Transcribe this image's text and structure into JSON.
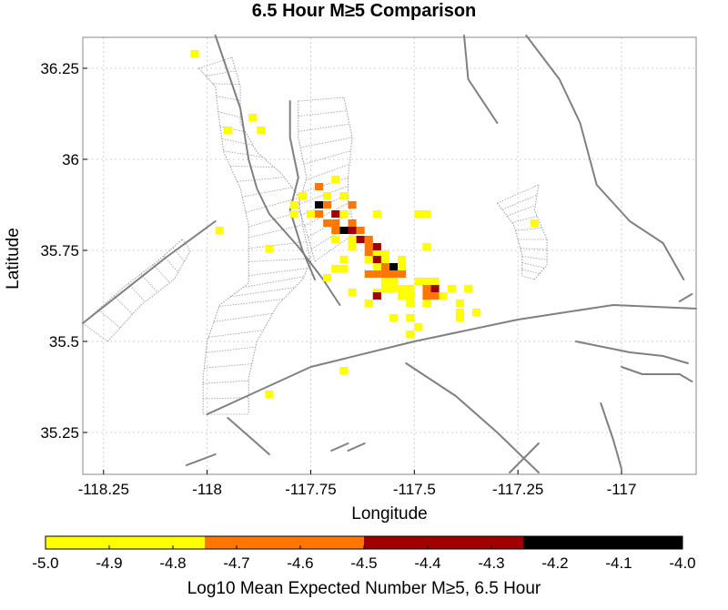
{
  "title": "6.5 Hour M≥5 Comparison",
  "map": {
    "xlabel": "Longitude",
    "ylabel": "Latitude",
    "xlim": [
      -118.3,
      -116.82
    ],
    "ylim": [
      35.135,
      36.335
    ],
    "xticks": [
      {
        "value": -118.25,
        "label": "-118.25"
      },
      {
        "value": -118.0,
        "label": "-118"
      },
      {
        "value": -117.75,
        "label": "-117.75"
      },
      {
        "value": -117.5,
        "label": "-117.5"
      },
      {
        "value": -117.25,
        "label": "-117.25"
      },
      {
        "value": -117.0,
        "label": "-117"
      }
    ],
    "yticks": [
      {
        "value": 35.25,
        "label": "35.25"
      },
      {
        "value": 35.5,
        "label": "35.5"
      },
      {
        "value": 35.75,
        "label": "35.75"
      },
      {
        "value": 36.0,
        "label": "36"
      },
      {
        "value": 36.25,
        "label": "36.25"
      }
    ],
    "grid": true,
    "cell_size_deg": 0.02,
    "levels": [
      {
        "min": -5.0,
        "max": -4.75,
        "color": "#ffff00"
      },
      {
        "min": -4.75,
        "max": -4.5,
        "color": "#ff7700"
      },
      {
        "min": -4.5,
        "max": -4.25,
        "color": "#a00000"
      },
      {
        "min": -4.25,
        "max": -4.0,
        "color": "#000000"
      }
    ],
    "fault_color": "#808080",
    "cells": [
      [
        -118.03,
        36.29,
        0
      ],
      [
        -117.89,
        36.115,
        0
      ],
      [
        -117.95,
        36.08,
        0
      ],
      [
        -117.87,
        36.08,
        0
      ],
      [
        -117.69,
        35.945,
        0
      ],
      [
        -117.73,
        35.925,
        1
      ],
      [
        -117.77,
        35.9,
        0
      ],
      [
        -117.71,
        35.9,
        0
      ],
      [
        -117.67,
        35.9,
        0
      ],
      [
        -117.79,
        35.875,
        0
      ],
      [
        -117.73,
        35.875,
        3
      ],
      [
        -117.71,
        35.875,
        1
      ],
      [
        -117.65,
        35.875,
        1
      ],
      [
        -117.79,
        35.85,
        0
      ],
      [
        -117.75,
        35.85,
        0
      ],
      [
        -117.73,
        35.85,
        1
      ],
      [
        -117.69,
        35.85,
        2
      ],
      [
        -117.67,
        35.85,
        0
      ],
      [
        -117.59,
        35.85,
        0
      ],
      [
        -117.49,
        35.85,
        0
      ],
      [
        -117.47,
        35.85,
        0
      ],
      [
        -117.71,
        35.825,
        1
      ],
      [
        -117.69,
        35.825,
        1
      ],
      [
        -117.65,
        35.825,
        1
      ],
      [
        -117.21,
        35.825,
        0
      ],
      [
        -117.97,
        35.805,
        0
      ],
      [
        -117.69,
        35.805,
        1
      ],
      [
        -117.67,
        35.805,
        3
      ],
      [
        -117.65,
        35.805,
        2
      ],
      [
        -117.63,
        35.805,
        1
      ],
      [
        -117.69,
        35.78,
        0
      ],
      [
        -117.65,
        35.78,
        0
      ],
      [
        -117.63,
        35.78,
        2
      ],
      [
        -117.61,
        35.78,
        1
      ],
      [
        -117.65,
        35.76,
        0
      ],
      [
        -117.61,
        35.76,
        1
      ],
      [
        -117.59,
        35.76,
        2
      ],
      [
        -117.47,
        35.76,
        0
      ],
      [
        -117.85,
        35.755,
        0
      ],
      [
        -117.61,
        35.74,
        1
      ],
      [
        -117.59,
        35.74,
        0
      ],
      [
        -117.57,
        35.74,
        0
      ],
      [
        -117.67,
        35.725,
        0
      ],
      [
        -117.61,
        35.725,
        0
      ],
      [
        -117.59,
        35.725,
        2
      ],
      [
        -117.57,
        35.725,
        0
      ],
      [
        -117.53,
        35.725,
        0
      ],
      [
        -117.59,
        35.705,
        0
      ],
      [
        -117.57,
        35.705,
        1
      ],
      [
        -117.55,
        35.705,
        3
      ],
      [
        -117.53,
        35.705,
        0
      ],
      [
        -117.69,
        35.7,
        0
      ],
      [
        -117.67,
        35.7,
        0
      ],
      [
        -117.61,
        35.685,
        1
      ],
      [
        -117.59,
        35.685,
        1
      ],
      [
        -117.57,
        35.685,
        1
      ],
      [
        -117.55,
        35.685,
        1
      ],
      [
        -117.53,
        35.685,
        1
      ],
      [
        -117.71,
        35.675,
        0
      ],
      [
        -117.57,
        35.665,
        0
      ],
      [
        -117.55,
        35.665,
        0
      ],
      [
        -117.49,
        35.665,
        0
      ],
      [
        -117.47,
        35.665,
        0
      ],
      [
        -117.45,
        35.665,
        0
      ],
      [
        -117.57,
        35.645,
        0
      ],
      [
        -117.55,
        35.645,
        0
      ],
      [
        -117.53,
        35.645,
        0
      ],
      [
        -117.51,
        35.645,
        0
      ],
      [
        -117.47,
        35.645,
        1
      ],
      [
        -117.45,
        35.645,
        2
      ],
      [
        -117.41,
        35.645,
        0
      ],
      [
        -117.37,
        35.645,
        0
      ],
      [
        -117.65,
        35.635,
        0
      ],
      [
        -117.59,
        35.635,
        0
      ],
      [
        -117.59,
        35.625,
        2
      ],
      [
        -117.53,
        35.625,
        0
      ],
      [
        -117.51,
        35.625,
        0
      ],
      [
        -117.47,
        35.625,
        1
      ],
      [
        -117.45,
        35.625,
        1
      ],
      [
        -117.43,
        35.625,
        0
      ],
      [
        -117.61,
        35.605,
        0
      ],
      [
        -117.51,
        35.605,
        0
      ],
      [
        -117.47,
        35.605,
        0
      ],
      [
        -117.39,
        35.605,
        0
      ],
      [
        -117.39,
        35.58,
        0
      ],
      [
        -117.35,
        35.58,
        0
      ],
      [
        -117.55,
        35.565,
        0
      ],
      [
        -117.51,
        35.565,
        0
      ],
      [
        -117.39,
        35.565,
        0
      ],
      [
        -117.49,
        35.54,
        0
      ],
      [
        -117.51,
        35.52,
        0
      ],
      [
        -117.67,
        35.42,
        0
      ],
      [
        -117.85,
        35.355,
        0
      ]
    ],
    "faults": [
      [
        [
          -117.98,
          36.34
        ],
        [
          -117.95,
          36.24
        ],
        [
          -117.92,
          36.14
        ],
        [
          -117.9,
          36.0
        ],
        [
          -117.88,
          35.92
        ],
        [
          -117.85,
          35.85
        ],
        [
          -117.78,
          35.76
        ],
        [
          -117.72,
          35.67
        ],
        [
          -117.68,
          35.6
        ]
      ],
      [
        [
          -117.8,
          36.16
        ],
        [
          -117.8,
          36.06
        ],
        [
          -117.78,
          35.95
        ],
        [
          -117.8,
          35.86
        ],
        [
          -117.77,
          35.75
        ],
        [
          -117.74,
          35.67
        ]
      ],
      [
        [
          -118.0,
          35.3
        ],
        [
          -117.75,
          35.43
        ],
        [
          -117.5,
          35.5
        ],
        [
          -117.25,
          35.56
        ],
        [
          -117.02,
          35.6
        ],
        [
          -116.82,
          35.59
        ]
      ],
      [
        [
          -118.3,
          35.55
        ],
        [
          -118.1,
          35.73
        ],
        [
          -117.98,
          35.83
        ]
      ],
      [
        [
          -117.38,
          36.34
        ],
        [
          -117.37,
          36.22
        ],
        [
          -117.3,
          36.1
        ]
      ],
      [
        [
          -117.23,
          36.34
        ],
        [
          -117.15,
          36.22
        ],
        [
          -117.1,
          36.1
        ],
        [
          -117.06,
          35.93
        ],
        [
          -116.98,
          35.83
        ],
        [
          -116.9,
          35.77
        ],
        [
          -116.85,
          35.67
        ]
      ],
      [
        [
          -117.52,
          35.44
        ],
        [
          -117.4,
          35.35
        ],
        [
          -117.3,
          35.25
        ],
        [
          -117.2,
          35.14
        ]
      ],
      [
        [
          -117.11,
          35.5
        ],
        [
          -116.98,
          35.47
        ],
        [
          -116.9,
          35.46
        ],
        [
          -116.84,
          35.44
        ]
      ],
      [
        [
          -117.05,
          35.33
        ],
        [
          -117.02,
          35.23
        ],
        [
          -117.0,
          35.15
        ]
      ],
      [
        [
          -117.0,
          35.43
        ],
        [
          -116.95,
          35.41
        ],
        [
          -116.86,
          35.41
        ],
        [
          -116.83,
          35.39
        ]
      ],
      [
        [
          -116.86,
          35.61
        ],
        [
          -116.83,
          35.63
        ]
      ],
      [
        [
          -117.95,
          35.29
        ],
        [
          -117.9,
          35.24
        ],
        [
          -117.85,
          35.19
        ]
      ],
      [
        [
          -118.05,
          35.16
        ],
        [
          -117.98,
          35.19
        ]
      ],
      [
        [
          -117.7,
          35.2
        ],
        [
          -117.66,
          35.22
        ]
      ],
      [
        [
          -117.27,
          35.14
        ],
        [
          -117.2,
          35.22
        ]
      ],
      [
        [
          -117.66,
          35.2
        ],
        [
          -117.62,
          35.22
        ]
      ]
    ],
    "fault_systems": [
      {
        "left": [
          [
            -118.02,
            36.25
          ],
          [
            -117.98,
            36.2
          ],
          [
            -117.97,
            36.1
          ],
          [
            -117.96,
            36.02
          ],
          [
            -117.92,
            35.92
          ],
          [
            -117.9,
            35.82
          ],
          [
            -117.9,
            35.75
          ],
          [
            -117.9,
            35.66
          ],
          [
            -117.97,
            35.6
          ],
          [
            -118.0,
            35.5
          ],
          [
            -118.01,
            35.4
          ],
          [
            -118.01,
            35.3
          ]
        ],
        "right": [
          [
            -117.94,
            36.28
          ],
          [
            -117.92,
            36.2
          ],
          [
            -117.92,
            36.1
          ],
          [
            -117.88,
            36.02
          ],
          [
            -117.82,
            35.96
          ],
          [
            -117.78,
            35.9
          ],
          [
            -117.77,
            35.82
          ],
          [
            -117.75,
            35.72
          ],
          [
            -117.77,
            35.67
          ],
          [
            -117.83,
            35.6
          ],
          [
            -117.88,
            35.5
          ],
          [
            -117.9,
            35.4
          ],
          [
            -117.9,
            35.3
          ]
        ]
      },
      {
        "left": [
          [
            -117.78,
            36.16
          ],
          [
            -117.78,
            36.06
          ],
          [
            -117.76,
            35.95
          ],
          [
            -117.78,
            35.87
          ],
          [
            -117.76,
            35.8
          ],
          [
            -117.74,
            35.72
          ]
        ],
        "right": [
          [
            -117.67,
            36.17
          ],
          [
            -117.65,
            36.06
          ],
          [
            -117.66,
            35.95
          ],
          [
            -117.66,
            35.88
          ],
          [
            -117.64,
            35.8
          ]
        ]
      },
      {
        "left": [
          [
            -117.3,
            35.88
          ],
          [
            -117.26,
            35.82
          ],
          [
            -117.24,
            35.74
          ],
          [
            -117.24,
            35.68
          ]
        ],
        "right": [
          [
            -117.2,
            35.93
          ],
          [
            -117.21,
            35.86
          ],
          [
            -117.18,
            35.78
          ],
          [
            -117.18,
            35.71
          ],
          [
            -117.21,
            35.67
          ]
        ]
      },
      {
        "left": [
          [
            -118.3,
            35.55
          ],
          [
            -118.2,
            35.65
          ],
          [
            -118.12,
            35.72
          ],
          [
            -118.06,
            35.78
          ]
        ],
        "right": [
          [
            -118.24,
            35.5
          ],
          [
            -118.16,
            35.6
          ],
          [
            -118.08,
            35.67
          ],
          [
            -118.04,
            35.75
          ]
        ]
      }
    ]
  },
  "colorbar": {
    "label": "Log10 Mean Expected Number M≥5, 6.5 Hour",
    "min": -5.0,
    "max": -4.0,
    "ticks": [
      {
        "value": -5.0,
        "label": "-5.0"
      },
      {
        "value": -4.9,
        "label": "-4.9"
      },
      {
        "value": -4.8,
        "label": "-4.8"
      },
      {
        "value": -4.7,
        "label": "-4.7"
      },
      {
        "value": -4.6,
        "label": "-4.6"
      },
      {
        "value": -4.5,
        "label": "-4.5"
      },
      {
        "value": -4.4,
        "label": "-4.4"
      },
      {
        "value": -4.3,
        "label": "-4.3"
      },
      {
        "value": -4.2,
        "label": "-4.2"
      },
      {
        "value": -4.1,
        "label": "-4.1"
      },
      {
        "value": -4.0,
        "label": "-4.0"
      }
    ]
  }
}
